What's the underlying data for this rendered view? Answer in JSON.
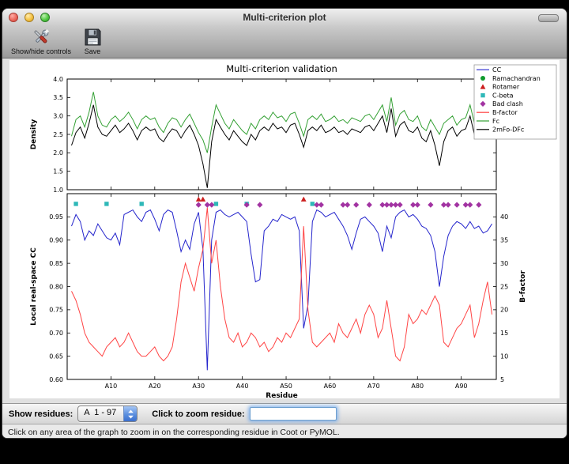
{
  "window": {
    "title": "Multi-criterion plot"
  },
  "toolbar": {
    "buttons": [
      {
        "label": "Show/hide controls",
        "icon": "tools-icon"
      },
      {
        "label": "Save",
        "icon": "floppy-disk-icon"
      }
    ]
  },
  "controls": {
    "show_residues_label": "Show residues:",
    "residue_range_value": "A  1 - 97",
    "zoom_label": "Click to zoom residue:",
    "zoom_input_value": "",
    "zoom_input_placeholder": ""
  },
  "status": {
    "text": "Click on any area of the graph to zoom in on the corresponding residue in Coot or PyMOL."
  },
  "chart_data": {
    "type": "line",
    "title": "Multi-criterion validation",
    "xlabel": "Residue",
    "xlim": [
      0,
      98
    ],
    "xticks": [
      10,
      20,
      30,
      40,
      50,
      60,
      70,
      80,
      90
    ],
    "xtick_labels": [
      "A10",
      "A20",
      "A30",
      "A40",
      "A50",
      "A60",
      "A70",
      "A80",
      "A90"
    ],
    "legend_position": "upper right",
    "legend": [
      {
        "label": "CC",
        "type": "line",
        "color": "#2424cc"
      },
      {
        "label": "Ramachandran",
        "type": "circle",
        "color": "#0f9b2e"
      },
      {
        "label": "Rotamer",
        "type": "triangle",
        "color": "#cc1f1f"
      },
      {
        "label": "C-beta",
        "type": "square",
        "color": "#2fb8b8"
      },
      {
        "label": "Bad clash",
        "type": "diamond",
        "color": "#a233a2"
      },
      {
        "label": "B-factor",
        "type": "line",
        "color": "#ff4545"
      },
      {
        "label": "Fc",
        "type": "line",
        "color": "#33a033"
      },
      {
        "label": "2mFo-DFc",
        "type": "line",
        "color": "#000000"
      }
    ],
    "top_plot": {
      "ylabel": "Density",
      "ylim": [
        1.0,
        4.0
      ],
      "yticks": [
        1.0,
        1.5,
        2.0,
        2.5,
        3.0,
        3.5,
        4.0
      ],
      "series": [
        {
          "name": "Fc",
          "color": "#33a033",
          "values": [
            2.45,
            2.9,
            3.0,
            2.7,
            3.1,
            3.65,
            3.0,
            2.75,
            2.7,
            2.9,
            3.0,
            2.85,
            2.95,
            3.1,
            2.9,
            2.65,
            2.9,
            3.0,
            2.9,
            2.95,
            2.7,
            2.55,
            2.8,
            2.95,
            2.9,
            2.7,
            2.9,
            3.05,
            2.8,
            2.55,
            2.35,
            2.0,
            2.7,
            3.3,
            3.05,
            2.8,
            2.65,
            2.9,
            2.75,
            2.6,
            2.5,
            2.8,
            2.65,
            2.9,
            3.0,
            2.9,
            3.1,
            2.95,
            3.0,
            2.85,
            3.05,
            3.1,
            2.8,
            2.45,
            2.9,
            3.0,
            2.9,
            3.05,
            2.85,
            2.9,
            3.0,
            2.85,
            2.9,
            2.8,
            2.95,
            2.9,
            2.85,
            3.0,
            3.05,
            2.9,
            3.1,
            3.3,
            2.85,
            3.5,
            2.75,
            3.05,
            3.15,
            2.9,
            2.85,
            3.0,
            2.7,
            2.6,
            2.9,
            2.7,
            2.5,
            2.8,
            2.9,
            3.0,
            2.75,
            2.9,
            2.95,
            3.3,
            2.8,
            3.05,
            3.2,
            2.9,
            3.0
          ]
        },
        {
          "name": "2mFo-DFc",
          "color": "#000000",
          "values": [
            2.2,
            2.55,
            2.7,
            2.4,
            2.8,
            3.3,
            2.7,
            2.5,
            2.45,
            2.6,
            2.75,
            2.55,
            2.65,
            2.8,
            2.6,
            2.35,
            2.6,
            2.7,
            2.6,
            2.65,
            2.4,
            2.3,
            2.5,
            2.65,
            2.6,
            2.4,
            2.6,
            2.75,
            2.5,
            2.2,
            1.7,
            1.05,
            2.3,
            2.9,
            2.7,
            2.5,
            2.35,
            2.6,
            2.45,
            2.3,
            2.2,
            2.5,
            2.35,
            2.6,
            2.7,
            2.6,
            2.8,
            2.65,
            2.7,
            2.55,
            2.75,
            2.8,
            2.5,
            2.15,
            2.6,
            2.7,
            2.6,
            2.75,
            2.55,
            2.6,
            2.7,
            2.55,
            2.6,
            2.5,
            2.65,
            2.6,
            2.55,
            2.7,
            2.75,
            2.6,
            2.8,
            3.0,
            2.55,
            3.2,
            2.45,
            2.75,
            2.85,
            2.6,
            2.55,
            2.7,
            2.4,
            2.3,
            2.6,
            2.2,
            1.65,
            2.3,
            2.6,
            2.7,
            2.45,
            2.6,
            2.65,
            3.0,
            2.5,
            2.75,
            2.9,
            2.6,
            2.7
          ]
        }
      ]
    },
    "bottom_plot": {
      "ylabel_left": "Local real-space CC",
      "ylabel_right": "B-factor",
      "ylim_left": [
        0.6,
        1.0
      ],
      "yticks_left": [
        0.6,
        0.65,
        0.7,
        0.75,
        0.8,
        0.85,
        0.9,
        0.95
      ],
      "ylim_right": [
        5,
        45
      ],
      "yticks_right": [
        5,
        10,
        15,
        20,
        25,
        30,
        35,
        40
      ],
      "series": [
        {
          "name": "CC",
          "axis": "left",
          "color": "#2424cc",
          "values": [
            0.93,
            0.955,
            0.94,
            0.9,
            0.92,
            0.91,
            0.935,
            0.92,
            0.905,
            0.9,
            0.915,
            0.89,
            0.955,
            0.96,
            0.965,
            0.95,
            0.94,
            0.96,
            0.965,
            0.945,
            0.92,
            0.955,
            0.965,
            0.96,
            0.92,
            0.875,
            0.9,
            0.88,
            0.935,
            0.96,
            0.88,
            0.62,
            0.9,
            0.96,
            0.965,
            0.955,
            0.95,
            0.955,
            0.96,
            0.95,
            0.94,
            0.87,
            0.81,
            0.815,
            0.92,
            0.93,
            0.945,
            0.94,
            0.955,
            0.95,
            0.945,
            0.95,
            0.92,
            0.71,
            0.76,
            0.94,
            0.965,
            0.96,
            0.95,
            0.955,
            0.96,
            0.945,
            0.93,
            0.91,
            0.88,
            0.915,
            0.945,
            0.95,
            0.94,
            0.93,
            0.915,
            0.875,
            0.93,
            0.905,
            0.95,
            0.96,
            0.965,
            0.95,
            0.955,
            0.945,
            0.93,
            0.925,
            0.91,
            0.875,
            0.8,
            0.865,
            0.91,
            0.93,
            0.94,
            0.935,
            0.925,
            0.94,
            0.925,
            0.93,
            0.915,
            0.92,
            0.935
          ]
        },
        {
          "name": "B-factor",
          "axis": "right",
          "color": "#ff4545",
          "values": [
            24,
            22,
            19,
            15,
            13,
            12,
            11,
            10,
            12,
            13,
            14,
            12,
            13,
            15,
            13,
            11,
            10,
            10,
            11,
            12,
            10,
            9,
            10,
            12,
            18,
            26,
            30,
            27,
            24,
            29,
            33,
            42,
            30,
            35,
            25,
            18,
            14,
            13,
            15,
            12,
            13,
            15,
            14,
            12,
            13,
            11,
            12,
            14,
            13,
            15,
            14,
            16,
            18,
            38,
            20,
            13,
            12,
            13,
            14,
            15,
            13,
            17,
            15,
            14,
            16,
            18,
            15,
            19,
            21,
            19,
            14,
            16,
            22,
            16,
            10,
            9,
            12,
            19,
            17,
            18,
            20,
            19,
            21,
            23,
            21,
            13,
            12,
            14,
            16,
            17,
            19,
            21,
            14,
            17,
            22,
            26,
            19
          ]
        }
      ],
      "outlier_markers": [
        {
          "name": "Rotamer",
          "shape": "triangle",
          "color": "#cc1f1f",
          "y": 0.988,
          "residues": [
            30,
            31,
            54
          ]
        },
        {
          "name": "C-beta",
          "shape": "square",
          "color": "#2fb8b8",
          "y": 0.978,
          "residues": [
            2,
            9,
            17,
            34,
            41,
            56
          ]
        },
        {
          "name": "Bad clash",
          "shape": "diamond",
          "color": "#a233a2",
          "y": 0.976,
          "residues": [
            30,
            32,
            33,
            41,
            44,
            57,
            58,
            63,
            64,
            66,
            69,
            72,
            73,
            74,
            75,
            76,
            79,
            80,
            83,
            86,
            87,
            89,
            91,
            92,
            94
          ]
        },
        {
          "name": "Ramachandran",
          "shape": "circle",
          "color": "#0f9b2e",
          "y": 0.988,
          "residues": []
        }
      ]
    }
  }
}
